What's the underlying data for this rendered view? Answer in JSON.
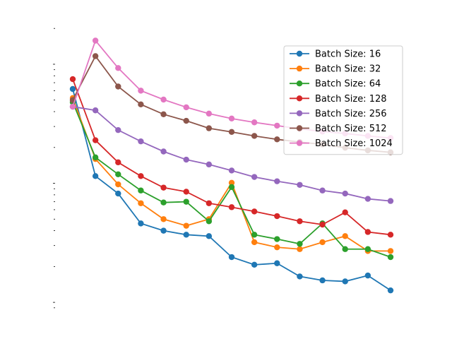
{
  "chart_data": {
    "type": "line",
    "title": "",
    "xlabel": "",
    "ylabel": "",
    "y_scale": "log",
    "x": [
      0,
      1,
      2,
      3,
      4,
      5,
      6,
      7,
      8,
      9,
      10,
      11,
      12,
      13,
      14
    ],
    "grid": false,
    "legend_position": "upper right",
    "series": [
      {
        "name": "Batch Size: 16",
        "color": "#1f77b4",
        "values": [
          0.62,
          0.115,
          0.082,
          0.046,
          0.04,
          0.037,
          0.036,
          0.024,
          0.0207,
          0.0213,
          0.0165,
          0.0153,
          0.015,
          0.0168,
          0.0126
        ]
      },
      {
        "name": "Batch Size: 32",
        "color": "#ff7f0e",
        "values": [
          0.52,
          0.16,
          0.098,
          0.068,
          0.05,
          0.044,
          0.05,
          0.101,
          0.032,
          0.029,
          0.028,
          0.032,
          0.036,
          0.027,
          0.027
        ]
      },
      {
        "name": "Batch Size: 64",
        "color": "#2ca02c",
        "values": [
          0.48,
          0.165,
          0.119,
          0.087,
          0.069,
          0.07,
          0.048,
          0.093,
          0.037,
          0.034,
          0.031,
          0.046,
          0.028,
          0.028,
          0.024
        ]
      },
      {
        "name": "Batch Size: 128",
        "color": "#d62728",
        "values": [
          0.75,
          0.23,
          0.15,
          0.115,
          0.092,
          0.085,
          0.068,
          0.063,
          0.058,
          0.053,
          0.048,
          0.045,
          0.057,
          0.039,
          0.037
        ]
      },
      {
        "name": "Batch Size: 256",
        "color": "#9467bd",
        "values": [
          0.44,
          0.41,
          0.28,
          0.225,
          0.185,
          0.158,
          0.144,
          0.128,
          0.113,
          0.104,
          0.097,
          0.087,
          0.082,
          0.074,
          0.071
        ]
      },
      {
        "name": "Batch Size: 512",
        "color": "#8c564b",
        "values": [
          0.5,
          1.17,
          0.65,
          0.46,
          0.38,
          0.335,
          0.29,
          0.27,
          0.25,
          0.234,
          0.222,
          0.212,
          0.199,
          0.189,
          0.182
        ]
      },
      {
        "name": "Batch Size: 1024",
        "color": "#e377c2",
        "values": [
          0.44,
          1.58,
          0.93,
          0.6,
          0.505,
          0.435,
          0.385,
          0.35,
          0.325,
          0.305,
          0.287,
          0.272,
          0.262,
          0.25,
          0.24
        ]
      }
    ]
  }
}
